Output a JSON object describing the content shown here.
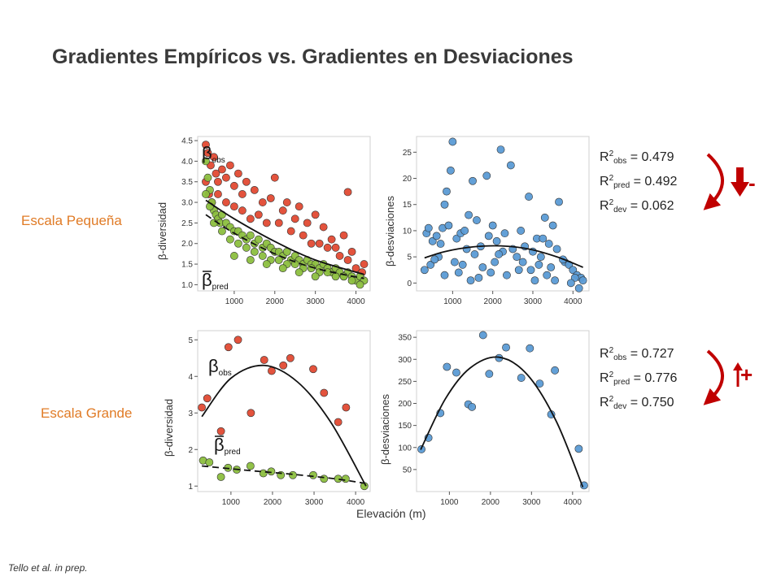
{
  "title": "Gradientes Empíricos vs. Gradientes en Desviaciones",
  "row_labels": {
    "small": "Escala Pequeña",
    "large": "Escala Grande"
  },
  "xlabel": "Elevación (m)",
  "citation": "Tello et al. in prep.",
  "stats_small": [
    {
      "base": "R",
      "sup": "2",
      "sub": "obs",
      "value": "= 0.479"
    },
    {
      "base": "R",
      "sup": "2",
      "sub": "pred",
      "value": "= 0.492"
    },
    {
      "base": "R",
      "sup": "2",
      "sub": "dev",
      "value": "= 0.062"
    }
  ],
  "stats_large": [
    {
      "base": "R",
      "sup": "2",
      "sub": "obs",
      "value": "= 0.727"
    },
    {
      "base": "R",
      "sup": "2",
      "sub": "pred",
      "value": "= 0.776"
    },
    {
      "base": "R",
      "sup": "2",
      "sub": "dev",
      "value": "= 0.750"
    }
  ],
  "signs": {
    "small": "-",
    "large": "+"
  },
  "colors": {
    "red": "#e24a33",
    "green": "#8cbf3f",
    "blue": "#5b9bd5",
    "arrow": "#c00000",
    "accent": "#e07b26"
  },
  "chart_data": [
    {
      "type": "scatter",
      "ylabel": "β-diversidad",
      "xlim": [
        100,
        4350
      ],
      "ylim": [
        0.85,
        4.6
      ],
      "xticks": [
        1000,
        2000,
        3000,
        4000
      ],
      "yticks": [
        1.0,
        1.5,
        2.0,
        2.5,
        3.0,
        3.5,
        4.0,
        4.5
      ],
      "annotations": [
        {
          "text": "β",
          "sub": "obs"
        },
        {
          "text": "β",
          "sub": "pred",
          "bar": true
        }
      ],
      "series": [
        {
          "name": "βobs",
          "color": "#e24a33",
          "x": [
            300,
            350,
            420,
            500,
            550,
            600,
            700,
            800,
            900,
            1000,
            1100,
            1200,
            1300,
            1500,
            1700,
            1900,
            2000,
            2200,
            2300,
            2500,
            2600,
            2800,
            3000,
            3200,
            3400,
            3500,
            3700,
            3900,
            4200,
            300,
            380,
            450,
            600,
            800,
            1000,
            1200,
            1400,
            1600,
            1800,
            2100,
            2400,
            2700,
            2900,
            3100,
            3300,
            3600,
            3800,
            4000,
            4150,
            3800
          ],
          "y": [
            4.4,
            4.2,
            3.9,
            4.1,
            3.7,
            3.5,
            3.8,
            3.6,
            3.9,
            3.4,
            3.7,
            3.2,
            3.5,
            3.3,
            3.0,
            3.1,
            3.6,
            2.8,
            3.0,
            2.6,
            2.9,
            2.5,
            2.7,
            2.4,
            2.1,
            1.9,
            2.2,
            1.8,
            1.5,
            3.5,
            3.2,
            3.0,
            3.2,
            3.0,
            2.9,
            2.8,
            2.6,
            2.7,
            2.5,
            2.5,
            2.3,
            2.2,
            2.0,
            2.0,
            1.9,
            1.7,
            1.6,
            1.4,
            1.3,
            3.25
          ]
        },
        {
          "name": "βpred",
          "color": "#8cbf3f",
          "x": [
            300,
            350,
            400,
            450,
            500,
            550,
            600,
            650,
            700,
            800,
            900,
            1000,
            1100,
            1200,
            1300,
            1400,
            1500,
            1600,
            1700,
            1800,
            1900,
            2000,
            2100,
            2200,
            2300,
            2400,
            2500,
            2600,
            2700,
            2800,
            2900,
            3000,
            3100,
            3200,
            3300,
            3400,
            3500,
            3600,
            3700,
            3800,
            3900,
            4000,
            4100,
            4200,
            300,
            400,
            500,
            700,
            900,
            1100,
            1300,
            1500,
            1700,
            1900,
            2100,
            2300,
            2500,
            2700,
            2900,
            3100,
            3300,
            3500,
            3700,
            3900,
            4100,
            1000,
            1400,
            1800,
            2200,
            2600,
            3000
          ],
          "y": [
            4.0,
            3.6,
            3.3,
            3.0,
            2.8,
            2.7,
            2.6,
            2.5,
            2.7,
            2.5,
            2.4,
            2.3,
            2.3,
            2.2,
            2.1,
            2.2,
            2.0,
            2.1,
            1.9,
            2.0,
            1.9,
            1.8,
            1.8,
            1.7,
            1.8,
            1.6,
            1.7,
            1.6,
            1.5,
            1.6,
            1.5,
            1.5,
            1.4,
            1.5,
            1.4,
            1.3,
            1.4,
            1.3,
            1.2,
            1.3,
            1.2,
            1.1,
            1.2,
            1.1,
            3.2,
            2.9,
            2.5,
            2.3,
            2.1,
            2.0,
            1.9,
            1.8,
            1.7,
            1.6,
            1.6,
            1.5,
            1.5,
            1.4,
            1.4,
            1.3,
            1.3,
            1.2,
            1.2,
            1.1,
            1.0,
            1.7,
            1.6,
            1.5,
            1.4,
            1.3,
            1.2
          ]
        }
      ],
      "fits": [
        {
          "of": "βobs",
          "style": "solid",
          "x": [
            300,
            1000,
            2000,
            3000,
            4200
          ],
          "y": [
            3.05,
            2.6,
            2.05,
            1.6,
            1.25
          ]
        },
        {
          "of": "βpred",
          "style": "dashed",
          "x": [
            300,
            1000,
            2000,
            3000,
            4200
          ],
          "y": [
            2.7,
            2.25,
            1.75,
            1.4,
            1.15
          ]
        }
      ]
    },
    {
      "type": "scatter",
      "ylabel": "β-desviaciones",
      "xlim": [
        100,
        4400
      ],
      "ylim": [
        -1.5,
        28
      ],
      "xticks": [
        1000,
        2000,
        3000,
        4000
      ],
      "yticks": [
        0,
        5,
        10,
        15,
        20,
        25
      ],
      "series": [
        {
          "name": "",
          "color": "#5b9bd5",
          "x": [
            1000,
            950,
            2200,
            2450,
            1500,
            1850,
            2900,
            3650,
            850,
            800,
            1400,
            1600,
            2000,
            3300,
            3500,
            350,
            400,
            500,
            600,
            700,
            750,
            900,
            1100,
            1200,
            1300,
            1700,
            1900,
            2100,
            2300,
            2500,
            2700,
            2800,
            3000,
            3100,
            3200,
            3400,
            3600,
            3800,
            3900,
            4000,
            4100,
            4200,
            300,
            450,
            650,
            1050,
            1250,
            1550,
            1750,
            2050,
            2250,
            2600,
            2950,
            3150,
            3450,
            3750,
            4050,
            4250,
            800,
            1150,
            1450,
            1650,
            1950,
            2350,
            2650,
            3050,
            3350,
            3550,
            3950,
            4150,
            550,
            1350,
            2150,
            2750,
            3250
          ],
          "y": [
            27,
            21.5,
            25.5,
            22.5,
            19.5,
            20.5,
            16.5,
            15.5,
            17.5,
            15,
            13,
            12,
            11,
            12.5,
            11,
            9.5,
            10.5,
            8,
            9,
            7.5,
            10.5,
            11,
            8.5,
            9.5,
            10,
            7,
            9,
            8,
            9.5,
            6.5,
            10,
            7,
            6,
            8.5,
            5,
            7.5,
            6.5,
            4,
            3.5,
            2.5,
            1.5,
            1.0,
            2.5,
            3.5,
            5,
            4,
            3.5,
            5.5,
            3,
            4,
            6,
            5,
            2.5,
            3.5,
            3,
            4.5,
            1.0,
            0.5,
            1.5,
            2,
            0.5,
            1.0,
            2,
            1.5,
            2.5,
            0.5,
            1.5,
            0.5,
            0,
            -1,
            4.5,
            6.5,
            5.5,
            4,
            8.5
          ]
        }
      ],
      "fits": [
        {
          "of": "",
          "style": "solid",
          "x": [
            300,
            800,
            1500,
            2200,
            2900,
            3600,
            4250
          ],
          "y": [
            4.8,
            6.0,
            6.9,
            7.1,
            6.5,
            5.0,
            3.0
          ]
        }
      ]
    },
    {
      "type": "scatter",
      "ylabel": "β-diversidad",
      "xlim": [
        200,
        4350
      ],
      "ylim": [
        0.85,
        5.25
      ],
      "xticks": [
        1000,
        2000,
        3000,
        4000
      ],
      "yticks": [
        1,
        2,
        3,
        4,
        5
      ],
      "annotations": [
        {
          "text": "β",
          "sub": "obs"
        },
        {
          "text": "β",
          "sub": "pred",
          "bar": true
        }
      ],
      "series": [
        {
          "name": "βobs",
          "color": "#e24a33",
          "x": [
            300,
            430,
            760,
            940,
            1170,
            1480,
            1800,
            1980,
            2260,
            2430,
            2980,
            3240,
            3580,
            3770
          ],
          "y": [
            3.15,
            3.4,
            2.5,
            4.8,
            5.0,
            3.0,
            4.45,
            4.15,
            4.3,
            4.5,
            4.2,
            3.55,
            2.75,
            3.15
          ]
        },
        {
          "name": "βpred",
          "color": "#8cbf3f",
          "x": [
            330,
            480,
            760,
            930,
            1140,
            1470,
            1780,
            1970,
            2200,
            2490,
            2980,
            3240,
            3580,
            3760,
            4210
          ],
          "y": [
            1.7,
            1.65,
            1.25,
            1.5,
            1.45,
            1.55,
            1.35,
            1.4,
            1.3,
            1.3,
            1.3,
            1.2,
            1.2,
            1.2,
            1.0
          ]
        }
      ],
      "fits": [
        {
          "of": "βobs",
          "style": "solid",
          "x": [
            300,
            1000,
            1800,
            2600,
            3400,
            4250
          ],
          "y": [
            2.9,
            3.95,
            4.3,
            3.85,
            2.75,
            1.0
          ]
        },
        {
          "of": "βpred",
          "style": "dashed",
          "x": [
            300,
            1500,
            2500,
            3500,
            4200
          ],
          "y": [
            1.55,
            1.42,
            1.32,
            1.2,
            1.08
          ]
        }
      ]
    },
    {
      "type": "scatter",
      "ylabel": "β-desviaciones",
      "xlim": [
        200,
        4400
      ],
      "ylim": [
        0,
        365
      ],
      "xticks": [
        1000,
        2000,
        3000,
        4000
      ],
      "yticks": [
        50,
        100,
        150,
        200,
        250,
        300,
        350
      ],
      "series": [
        {
          "name": "",
          "color": "#5b9bd5",
          "x": [
            320,
            490,
            780,
            940,
            1170,
            1460,
            1550,
            1820,
            1970,
            2210,
            2380,
            2750,
            2960,
            3200,
            3480,
            3570,
            4150,
            4280
          ],
          "y": [
            96,
            122,
            178,
            283,
            270,
            198,
            192,
            355,
            267,
            303,
            327,
            258,
            325,
            245,
            175,
            275,
            97,
            14
          ]
        }
      ],
      "fits": [
        {
          "of": "",
          "style": "solid",
          "x": [
            300,
            900,
            1500,
            2200,
            2900,
            3600,
            4250
          ],
          "y": [
            95,
            210,
            280,
            305,
            265,
            160,
            10
          ]
        }
      ]
    }
  ]
}
